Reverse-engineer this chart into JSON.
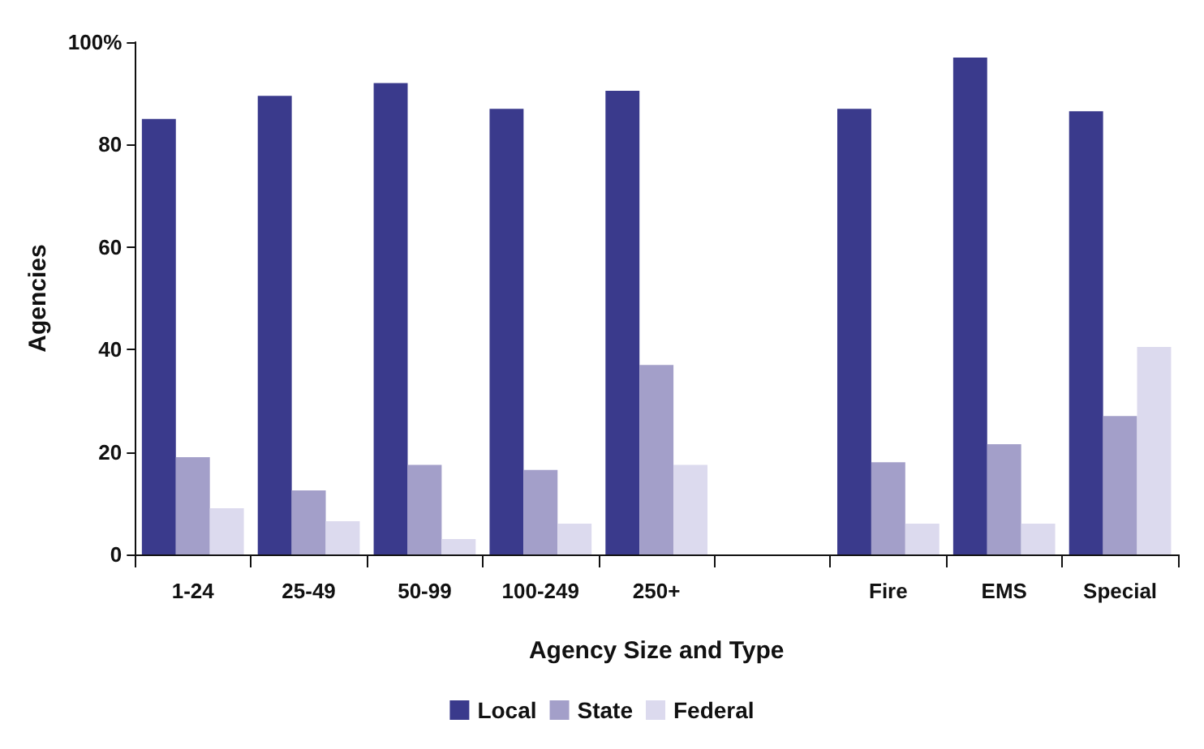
{
  "chart_data": {
    "type": "bar",
    "xlabel": "Agency Size and Type",
    "ylabel": "Agencies",
    "categories": [
      "1-24",
      "25-49",
      "50-99",
      "100-249",
      "250+",
      null,
      "Fire",
      "EMS",
      "Special"
    ],
    "series": [
      {
        "name": "Local",
        "color": "#3a3a8c",
        "values": [
          85,
          89.5,
          92,
          87,
          90.5,
          null,
          87,
          97,
          86.5
        ]
      },
      {
        "name": "State",
        "color": "#a39fc9",
        "values": [
          19,
          12.5,
          17.5,
          16.5,
          37,
          null,
          18,
          21.5,
          27
        ]
      },
      {
        "name": "Federal",
        "color": "#dcdaee",
        "values": [
          9,
          6.5,
          3,
          6,
          17.5,
          null,
          6,
          6,
          40.5
        ]
      }
    ],
    "ylim": [
      0,
      100
    ],
    "yticks": [
      0,
      20,
      40,
      60,
      80,
      {
        "value": 100,
        "label": "100%"
      }
    ],
    "grid": false,
    "legend": "bottom"
  }
}
